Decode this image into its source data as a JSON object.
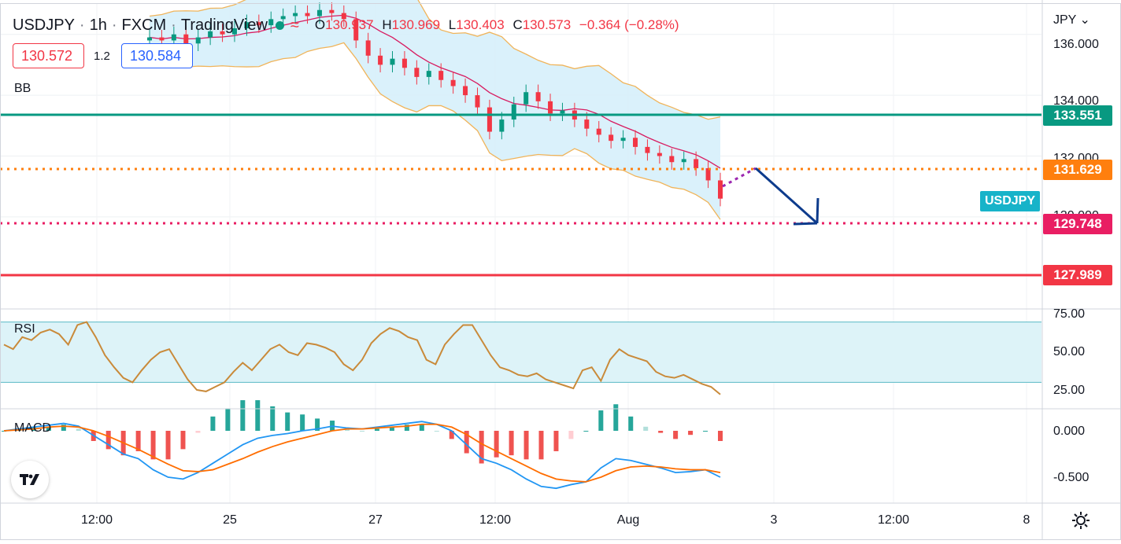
{
  "header": {
    "symbol": "USDJPY",
    "interval": "1h",
    "exchange": "FXCM",
    "platform": "TradingView",
    "ohlc": {
      "o_label": "O",
      "o_value": "130.937",
      "h_label": "H",
      "h_value": "130.969",
      "l_label": "L",
      "l_value": "130.403",
      "c_label": "C",
      "c_value": "130.573",
      "change": "−0.364 (−0.28%)"
    }
  },
  "trade": {
    "sell_price": "130.572",
    "spread": "1.2",
    "buy_price": "130.584"
  },
  "indicators": {
    "bb_label": "BB",
    "rsi_label": "RSI",
    "macd_label": "MACD"
  },
  "axis": {
    "currency": "JPY",
    "price_ticks": [
      "136.000",
      "134.000",
      "132.000",
      "130.000"
    ],
    "rsi_ticks": [
      "75.00",
      "50.00",
      "25.00"
    ],
    "macd_ticks": [
      "0.000",
      "-0.500"
    ],
    "time_ticks": [
      "12:00",
      "25",
      "27",
      "12:00",
      "Aug",
      "3",
      "12:00",
      "8"
    ]
  },
  "levels": [
    {
      "value": "133.551",
      "color": "#089981",
      "style": "solid"
    },
    {
      "value": "131.629",
      "color": "#ff7f0e",
      "style": "dotted"
    },
    {
      "value": "129.748",
      "color": "#e91e63",
      "style": "dotted"
    },
    {
      "value": "127.989",
      "color": "#f23645",
      "style": "solid"
    }
  ],
  "symbol_badge": "USDJPY",
  "colors": {
    "up": "#089981",
    "down": "#f23645",
    "bb_fill": "#d6f0fb",
    "bb_band": "#f0b45a",
    "bb_basis": "#d81b60",
    "rsi_line": "#c98a3a",
    "macd_line": "#2196f3",
    "signal_line": "#ff6d00",
    "projection": "#0d3b8c"
  },
  "chart_data": {
    "type": "candlestick",
    "price_range": [
      127.0,
      137.0
    ],
    "close_series": [
      135.9,
      135.8,
      136.0,
      135.7,
      135.9,
      136.1,
      136.0,
      136.2,
      136.4,
      136.3,
      136.5,
      136.6,
      136.7,
      136.6,
      136.8,
      136.7,
      136.5,
      135.8,
      135.3,
      135.0,
      135.2,
      134.9,
      134.6,
      134.8,
      134.5,
      134.3,
      134.0,
      133.6,
      132.8,
      133.2,
      133.7,
      134.1,
      133.8,
      133.4,
      133.5,
      133.2,
      132.9,
      132.7,
      132.5,
      132.6,
      132.3,
      132.1,
      132.0,
      131.8,
      131.9,
      131.6,
      131.2,
      130.6
    ],
    "rsi": {
      "range": [
        0,
        100
      ],
      "band": [
        30,
        70
      ],
      "values": [
        55,
        52,
        60,
        58,
        63,
        65,
        62,
        55,
        68,
        70,
        60,
        48,
        40,
        33,
        30,
        38,
        45,
        50,
        52,
        42,
        32,
        25,
        24,
        27,
        30,
        37,
        43,
        38,
        45,
        52,
        55,
        50,
        48,
        56,
        55,
        53,
        50,
        42,
        38,
        45,
        56,
        62,
        66,
        64,
        60,
        58,
        45,
        42,
        55,
        62,
        68,
        68,
        58,
        48,
        40,
        38,
        35,
        34,
        36,
        32,
        30,
        28,
        26,
        38,
        40,
        31,
        45,
        52,
        48,
        46,
        44,
        37,
        34,
        33,
        35,
        32,
        29,
        27,
        22
      ],
      "last": 22
    },
    "macd": {
      "range": [
        -0.7,
        0.2
      ],
      "macd_values": [
        0.0,
        0.02,
        0.04,
        0.06,
        0.08,
        0.05,
        -0.05,
        -0.15,
        -0.25,
        -0.3,
        -0.42,
        -0.5,
        -0.52,
        -0.45,
        -0.35,
        -0.25,
        -0.15,
        -0.08,
        -0.05,
        -0.03,
        0.0,
        0.02,
        0.05,
        0.03,
        0.02,
        0.04,
        0.06,
        0.08,
        0.1,
        0.07,
        0.0,
        -0.15,
        -0.3,
        -0.35,
        -0.42,
        -0.52,
        -0.6,
        -0.62,
        -0.58,
        -0.55,
        -0.4,
        -0.3,
        -0.32,
        -0.36,
        -0.4,
        -0.45,
        -0.44,
        -0.42,
        -0.5
      ],
      "signal_values": [
        0.0,
        0.01,
        0.02,
        0.04,
        0.05,
        0.04,
        0.0,
        -0.06,
        -0.13,
        -0.2,
        -0.28,
        -0.36,
        -0.43,
        -0.44,
        -0.42,
        -0.36,
        -0.3,
        -0.23,
        -0.17,
        -0.12,
        -0.08,
        -0.04,
        0.0,
        0.02,
        0.02,
        0.03,
        0.04,
        0.05,
        0.07,
        0.07,
        0.04,
        -0.04,
        -0.14,
        -0.22,
        -0.3,
        -0.38,
        -0.46,
        -0.52,
        -0.54,
        -0.55,
        -0.5,
        -0.43,
        -0.39,
        -0.38,
        -0.39,
        -0.41,
        -0.42,
        -0.42,
        -0.45
      ]
    }
  }
}
